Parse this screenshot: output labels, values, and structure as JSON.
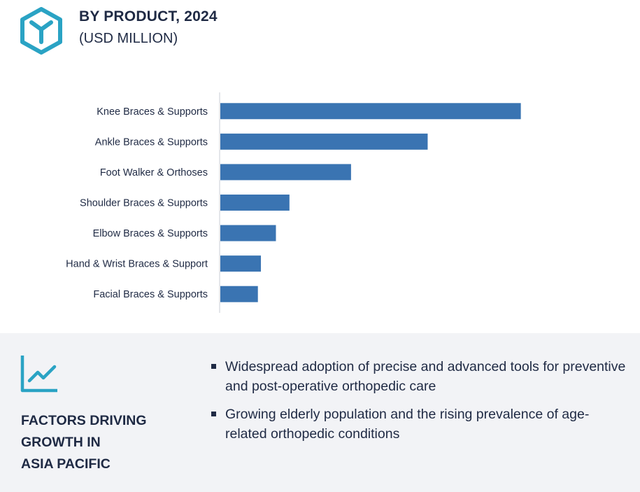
{
  "header": {
    "title": "BY PRODUCT, 2024",
    "subtitle": "(USD MILLION)",
    "logo_icon": "cube-y-logo-icon",
    "accent_color": "#2aa3c4"
  },
  "chart_data": {
    "type": "bar",
    "orientation": "horizontal",
    "title": "BY PRODUCT, 2024",
    "subtitle": "(USD MILLION)",
    "categories": [
      "Knee Braces & Supports",
      "Ankle Braces & Supports",
      "Foot Walker & Orthoses",
      "Shoulder Braces & Supports",
      "Elbow Braces & Supports",
      "Hand & Wrist Braces & Support",
      "Facial Braces & Supports"
    ],
    "values": [
      100,
      69,
      43.5,
      23,
      18.5,
      13.5,
      12.5
    ],
    "xlim": [
      0,
      135
    ],
    "bar_color": "#3a74b2",
    "grid": false,
    "value_labels": false
  },
  "factors": {
    "icon": "trend-chart-icon",
    "title_lines": [
      "FACTORS DRIVING",
      "GROWTH IN",
      "ASIA PACIFIC"
    ],
    "bullets": [
      "Widespread adoption of precise and advanced tools for preventive and post-operative orthopedic care",
      "Growing elderly population and the rising prevalence of age-related orthopedic conditions"
    ]
  }
}
